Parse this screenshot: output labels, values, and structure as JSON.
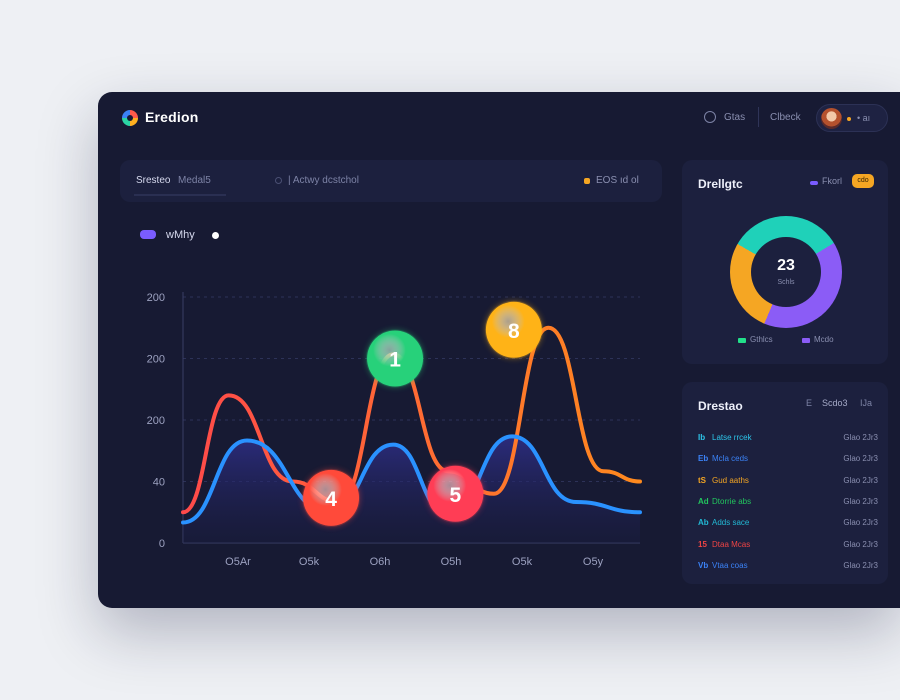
{
  "header": {
    "brand": "Eredion",
    "links": [
      "Gtas",
      "Clbeck"
    ],
    "user_label": "• aı"
  },
  "tabs": {
    "items": [
      "Sresteo",
      "Medal5",
      "| Actwy dcstchol"
    ],
    "right_label": "EOS ıd ol"
  },
  "chart": {
    "legend_label": "wMhy"
  },
  "chart_data": {
    "type": "line",
    "y_ticks": [
      "0",
      "40",
      "200",
      "200",
      "200"
    ],
    "x_ticks": [
      "O5Ar",
      "O5k",
      "O6h",
      "O5h",
      "O5k",
      "O5y"
    ],
    "series": [
      {
        "name": "",
        "color": "#ff8a1e",
        "x": [
          0,
          0.5,
          1.2,
          1.7,
          2.3,
          2.9,
          3.4,
          4.0,
          4.6,
          5.0
        ],
        "values": [
          15,
          72,
          30,
          20,
          92,
          35,
          24,
          105,
          35,
          30
        ]
      },
      {
        "name": "",
        "color": "#2a92ff",
        "x": [
          0,
          0.7,
          1.6,
          2.3,
          2.9,
          3.6,
          4.3,
          5.0
        ],
        "values": [
          10,
          50,
          15,
          48,
          14,
          52,
          20,
          15
        ]
      }
    ],
    "markers": [
      {
        "label": "4",
        "x": 1.62,
        "y": 22,
        "color": "#ff4a3a"
      },
      {
        "label": "1",
        "x": 2.32,
        "y": 90,
        "color": "#27d17a"
      },
      {
        "label": "5",
        "x": 2.98,
        "y": 24,
        "color": "#ff3d55"
      },
      {
        "label": "8",
        "x": 3.62,
        "y": 104,
        "color": "#ffb317"
      }
    ],
    "xlim": [
      0,
      5
    ],
    "ylim": [
      0,
      120
    ]
  },
  "donut_card": {
    "title": "Drellgtc",
    "chip_text": "Fkorl",
    "badge": "cdo",
    "value": "23",
    "sub": "Schls",
    "segments": [
      {
        "value": 33,
        "color": "#1fd1b9"
      },
      {
        "value": 40,
        "color": "#8b5cf6"
      },
      {
        "value": 27,
        "color": "#f5a623"
      }
    ],
    "legend": [
      {
        "label": "Gthlcs",
        "color": "#22e08a"
      },
      {
        "label": "Mcdo",
        "color": "#8b5cf6"
      }
    ]
  },
  "list_card": {
    "title": "Drestao",
    "head_a": "E",
    "head_b": "Scdo3",
    "head_c": "IJa",
    "rows": [
      {
        "icon": "Ib",
        "label": "Latse rrcek",
        "value": "Glao 2Jr3",
        "color": "#2dc6ea"
      },
      {
        "icon": "Eb",
        "label": "Mcla ceds",
        "value": "Glao 2Jr3",
        "color": "#3b82f6"
      },
      {
        "icon": "tS",
        "label": "Gud aaths",
        "value": "Glao 2Jr3",
        "color": "#f5a623"
      },
      {
        "icon": "Ad",
        "label": "Dtorrie abs",
        "value": "Glao 2Jr3",
        "color": "#22c55e"
      },
      {
        "icon": "Ab",
        "label": "Adds sace",
        "value": "Glao 2Jr3",
        "color": "#22b8d4"
      },
      {
        "icon": "15",
        "label": "Dtaa Mcas",
        "value": "Glao 2Jr3",
        "color": "#ef4444"
      },
      {
        "icon": "Vb",
        "label": "Vtaa coas",
        "value": "Glao 2Jr3",
        "color": "#3b82f6"
      }
    ]
  }
}
